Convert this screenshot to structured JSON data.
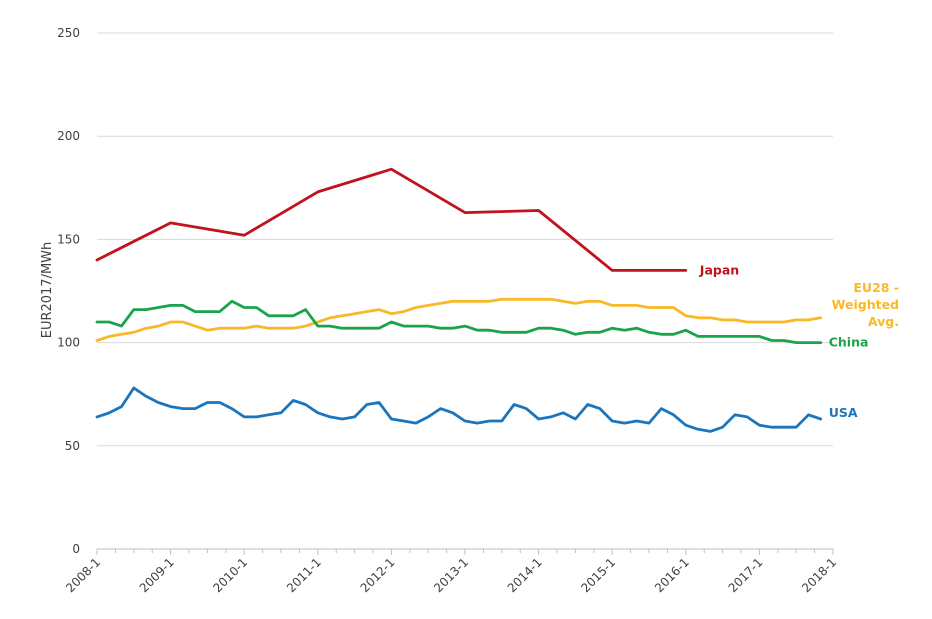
{
  "chart_data": {
    "type": "line",
    "title": "",
    "xlabel": "",
    "ylabel": "EUR2017/MWh",
    "ylim": [
      0,
      250
    ],
    "yticks": [
      0,
      50,
      100,
      150,
      200,
      250
    ],
    "xlim": [
      "2008-1",
      "2018-1"
    ],
    "xticks": [
      "2008-1",
      "2009-1",
      "2010-1",
      "2011-1",
      "2012-1",
      "2013-1",
      "2014-1",
      "2015-1",
      "2016-1",
      "2017-1",
      "2018-1"
    ],
    "grid": "horizontal",
    "legend": "inline labels at line ends",
    "series": [
      {
        "name": "Japan",
        "color": "#c0131c",
        "x": [
          "2008-1",
          "2009-1",
          "2010-1",
          "2011-1",
          "2012-1",
          "2013-1",
          "2014-1",
          "2015-1",
          "2016-1"
        ],
        "values": [
          140,
          158,
          152,
          173,
          184,
          163,
          164,
          135,
          135
        ]
      },
      {
        "name": "EU28 - Weighted Avg.",
        "color": "#f8b829",
        "x": [
          "2008-1",
          "2008-3",
          "2008-5",
          "2008-7",
          "2008-9",
          "2008-11",
          "2009-1",
          "2009-3",
          "2009-5",
          "2009-7",
          "2009-9",
          "2009-11",
          "2010-1",
          "2010-3",
          "2010-5",
          "2010-7",
          "2010-9",
          "2010-11",
          "2011-1",
          "2011-3",
          "2011-5",
          "2011-7",
          "2011-9",
          "2011-11",
          "2012-1",
          "2012-3",
          "2012-5",
          "2012-7",
          "2012-9",
          "2012-11",
          "2013-1",
          "2013-3",
          "2013-5",
          "2013-7",
          "2013-9",
          "2013-11",
          "2014-1",
          "2014-3",
          "2014-5",
          "2014-7",
          "2014-9",
          "2014-11",
          "2015-1",
          "2015-3",
          "2015-5",
          "2015-7",
          "2015-9",
          "2015-11",
          "2016-1",
          "2016-3",
          "2016-5",
          "2016-7",
          "2016-9",
          "2016-11",
          "2017-1",
          "2017-3",
          "2017-5",
          "2017-7",
          "2017-9",
          "2017-11"
        ],
        "values": [
          101,
          103,
          104,
          105,
          107,
          108,
          110,
          110,
          108,
          106,
          107,
          107,
          107,
          108,
          107,
          107,
          107,
          108,
          110,
          112,
          113,
          114,
          115,
          116,
          114,
          115,
          117,
          118,
          119,
          120,
          120,
          120,
          120,
          121,
          121,
          121,
          121,
          121,
          120,
          119,
          120,
          120,
          118,
          118,
          118,
          117,
          117,
          117,
          113,
          112,
          112,
          111,
          111,
          110,
          110,
          110,
          110,
          111,
          111,
          112
        ]
      },
      {
        "name": "China",
        "color": "#1aa44a",
        "x": [
          "2008-1",
          "2008-3",
          "2008-5",
          "2008-7",
          "2008-9",
          "2008-11",
          "2009-1",
          "2009-3",
          "2009-5",
          "2009-7",
          "2009-9",
          "2009-11",
          "2010-1",
          "2010-3",
          "2010-5",
          "2010-7",
          "2010-9",
          "2010-11",
          "2011-1",
          "2011-3",
          "2011-5",
          "2011-7",
          "2011-9",
          "2011-11",
          "2012-1",
          "2012-3",
          "2012-5",
          "2012-7",
          "2012-9",
          "2012-11",
          "2013-1",
          "2013-3",
          "2013-5",
          "2013-7",
          "2013-9",
          "2013-11",
          "2014-1",
          "2014-3",
          "2014-5",
          "2014-7",
          "2014-9",
          "2014-11",
          "2015-1",
          "2015-3",
          "2015-5",
          "2015-7",
          "2015-9",
          "2015-11",
          "2016-1",
          "2016-3",
          "2016-5",
          "2016-7",
          "2016-9",
          "2016-11",
          "2017-1",
          "2017-3",
          "2017-5",
          "2017-7",
          "2017-9",
          "2017-11"
        ],
        "values": [
          110,
          110,
          108,
          116,
          116,
          117,
          118,
          118,
          115,
          115,
          115,
          120,
          117,
          117,
          113,
          113,
          113,
          116,
          108,
          108,
          107,
          107,
          107,
          107,
          110,
          108,
          108,
          108,
          107,
          107,
          108,
          106,
          106,
          105,
          105,
          105,
          107,
          107,
          106,
          104,
          105,
          105,
          107,
          106,
          107,
          105,
          104,
          104,
          106,
          103,
          103,
          103,
          103,
          103,
          103,
          101,
          101,
          100,
          100,
          100
        ]
      },
      {
        "name": "USA",
        "color": "#1b75bc",
        "x": [
          "2008-1",
          "2008-3",
          "2008-5",
          "2008-7",
          "2008-9",
          "2008-11",
          "2009-1",
          "2009-3",
          "2009-5",
          "2009-7",
          "2009-9",
          "2009-11",
          "2010-1",
          "2010-3",
          "2010-5",
          "2010-7",
          "2010-9",
          "2010-11",
          "2011-1",
          "2011-3",
          "2011-5",
          "2011-7",
          "2011-9",
          "2011-11",
          "2012-1",
          "2012-3",
          "2012-5",
          "2012-7",
          "2012-9",
          "2012-11",
          "2013-1",
          "2013-3",
          "2013-5",
          "2013-7",
          "2013-9",
          "2013-11",
          "2014-1",
          "2014-3",
          "2014-5",
          "2014-7",
          "2014-9",
          "2014-11",
          "2015-1",
          "2015-3",
          "2015-5",
          "2015-7",
          "2015-9",
          "2015-11",
          "2016-1",
          "2016-3",
          "2016-5",
          "2016-7",
          "2016-9",
          "2016-11",
          "2017-1",
          "2017-3",
          "2017-5",
          "2017-7",
          "2017-9",
          "2017-11"
        ],
        "values": [
          64,
          66,
          69,
          78,
          74,
          71,
          69,
          68,
          68,
          71,
          71,
          68,
          64,
          64,
          65,
          66,
          72,
          70,
          66,
          64,
          63,
          64,
          70,
          71,
          63,
          62,
          61,
          64,
          68,
          66,
          62,
          61,
          62,
          62,
          70,
          68,
          63,
          64,
          66,
          63,
          70,
          68,
          62,
          61,
          62,
          61,
          68,
          65,
          60,
          58,
          57,
          59,
          65,
          64,
          60,
          59,
          59,
          59,
          65,
          63
        ]
      }
    ]
  }
}
